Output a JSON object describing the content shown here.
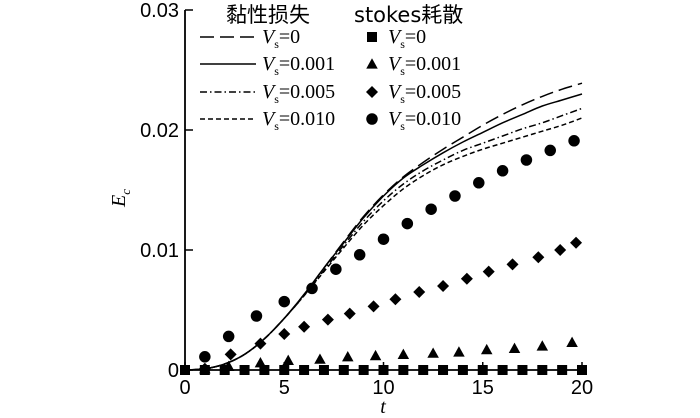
{
  "chart_data": {
    "type": "line",
    "xlabel": "t",
    "ylabel": "E",
    "ylabel_sub": "c",
    "xlim": [
      0,
      20
    ],
    "ylim": [
      0,
      0.03
    ],
    "xticks": [
      0,
      5,
      10,
      15,
      20
    ],
    "xtick_labels": [
      "0",
      "5",
      "10",
      "15",
      "20"
    ],
    "yticks": [
      0,
      0.01,
      0.02,
      0.03
    ],
    "ytick_labels": [
      "0",
      "0.01",
      "0.02",
      "0.03"
    ],
    "grid": false,
    "legend": {
      "placement": "top-left",
      "lines_title": "黏性损失",
      "markers_title": "stokes耗散"
    },
    "series": [
      {
        "name": "V_s=0",
        "group": "viscous",
        "style": "long-dash",
        "x": [
          0,
          1,
          2,
          3,
          4,
          5,
          6,
          7,
          8,
          9,
          10,
          11,
          12,
          13,
          14,
          15,
          16,
          17,
          18,
          19,
          20
        ],
        "y": [
          0,
          0.0001,
          0.0005,
          0.0013,
          0.0026,
          0.0043,
          0.0063,
          0.0085,
          0.0107,
          0.0128,
          0.0146,
          0.0161,
          0.0173,
          0.0184,
          0.0194,
          0.0204,
          0.0213,
          0.0221,
          0.0228,
          0.0234,
          0.0239
        ]
      },
      {
        "name": "V_s=0.001",
        "group": "viscous",
        "style": "solid",
        "x": [
          0,
          1,
          2,
          3,
          4,
          5,
          6,
          7,
          8,
          9,
          10,
          11,
          12,
          13,
          14,
          15,
          16,
          17,
          18,
          19,
          20
        ],
        "y": [
          0,
          0.0001,
          0.0005,
          0.0013,
          0.0026,
          0.0043,
          0.0063,
          0.0085,
          0.0106,
          0.0127,
          0.0145,
          0.016,
          0.0171,
          0.0181,
          0.019,
          0.0198,
          0.0206,
          0.0213,
          0.022,
          0.0225,
          0.023
        ]
      },
      {
        "name": "V_s=0.005",
        "group": "viscous",
        "style": "dash-dot",
        "x": [
          0,
          1,
          2,
          3,
          4,
          5,
          6,
          7,
          8,
          9,
          10,
          11,
          12,
          13,
          14,
          15,
          16,
          17,
          18,
          19,
          20
        ],
        "y": [
          0,
          0.0001,
          0.0005,
          0.0013,
          0.0026,
          0.0043,
          0.0062,
          0.0083,
          0.0104,
          0.0124,
          0.0141,
          0.0155,
          0.0166,
          0.0175,
          0.0183,
          0.0189,
          0.0195,
          0.0201,
          0.0206,
          0.0212,
          0.0218
        ]
      },
      {
        "name": "V_s=0.010",
        "group": "viscous",
        "style": "short-dash",
        "x": [
          0,
          1,
          2,
          3,
          4,
          5,
          6,
          7,
          8,
          9,
          10,
          11,
          12,
          13,
          14,
          15,
          16,
          17,
          18,
          19,
          20
        ],
        "y": [
          0,
          0.0001,
          0.0005,
          0.0013,
          0.0026,
          0.0043,
          0.0062,
          0.0082,
          0.0102,
          0.0121,
          0.0137,
          0.0151,
          0.0162,
          0.0171,
          0.0178,
          0.0184,
          0.0189,
          0.0194,
          0.0199,
          0.0204,
          0.021
        ]
      },
      {
        "name": "V_s=0",
        "group": "stokes",
        "marker": "square",
        "x": [
          0,
          1,
          2,
          3,
          4,
          5,
          6,
          7,
          8,
          9,
          10,
          11,
          12,
          13,
          14,
          15,
          16,
          17,
          18,
          19,
          20
        ],
        "y": [
          0,
          0,
          0,
          0,
          0,
          0,
          0,
          0,
          0,
          0,
          0,
          0,
          0,
          0,
          0,
          0,
          0,
          0,
          0,
          0,
          0
        ]
      },
      {
        "name": "V_s=0.001",
        "group": "stokes",
        "marker": "triangle",
        "x": [
          1,
          2.2,
          3.8,
          5.2,
          6.8,
          8.2,
          9.6,
          11,
          12.5,
          13.8,
          15.2,
          16.6,
          18,
          19.5
        ],
        "y": [
          0.0001,
          0.0003,
          0.0006,
          0.0008,
          0.0009,
          0.0011,
          0.0012,
          0.0013,
          0.0014,
          0.0015,
          0.0017,
          0.0018,
          0.002,
          0.0023
        ]
      },
      {
        "name": "V_s=0.005",
        "group": "stokes",
        "marker": "diamond",
        "x": [
          1,
          2.3,
          3.8,
          5,
          6,
          7.2,
          8.3,
          9.5,
          10.6,
          11.8,
          13,
          14.2,
          15.3,
          16.5,
          17.8,
          18.9,
          19.7
        ],
        "y": [
          0.0001,
          0.0013,
          0.0022,
          0.003,
          0.0036,
          0.0042,
          0.0047,
          0.0053,
          0.0059,
          0.0065,
          0.007,
          0.0076,
          0.0082,
          0.0088,
          0.0094,
          0.01,
          0.0106
        ]
      },
      {
        "name": "V_s=0.010",
        "group": "stokes",
        "marker": "circle",
        "x": [
          1,
          2.2,
          3.6,
          5,
          6.4,
          7.6,
          8.8,
          10,
          11.2,
          12.4,
          13.6,
          14.8,
          16,
          17.2,
          18.4,
          19.6
        ],
        "y": [
          0.0011,
          0.0028,
          0.0045,
          0.0057,
          0.0068,
          0.0084,
          0.0096,
          0.0109,
          0.0122,
          0.0134,
          0.0145,
          0.0156,
          0.0166,
          0.0175,
          0.0183,
          0.0191
        ]
      }
    ]
  }
}
